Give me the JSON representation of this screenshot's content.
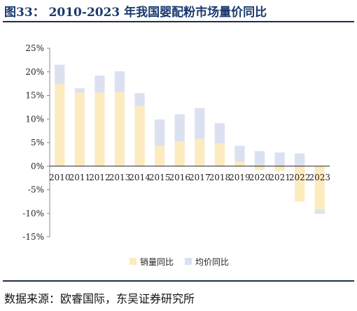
{
  "title": "图33： 2010-2023 年我国婴配粉市场量价同比",
  "source": "数据来源：欧睿国际，东吴证券研究所",
  "colors": {
    "volume": "#FCEBBE",
    "price": "#DCE1F1",
    "title": "#1a3a6e",
    "rule": "#1f2d4a"
  },
  "chart_data": {
    "type": "bar",
    "stacked": true,
    "categories": [
      "2010",
      "2011",
      "2012",
      "2013",
      "2014",
      "2015",
      "2016",
      "2017",
      "2018",
      "2019",
      "2020",
      "2021",
      "2022",
      "2023"
    ],
    "series": [
      {
        "name": "销量同比",
        "values": [
          17.4,
          15.6,
          15.6,
          15.7,
          12.7,
          4.3,
          5.2,
          5.8,
          4.8,
          1.0,
          -0.8,
          -1.0,
          -7.5,
          -9.3
        ]
      },
      {
        "name": "均价同比",
        "values": [
          4.1,
          0.9,
          3.6,
          4.4,
          2.8,
          5.6,
          5.8,
          6.5,
          4.3,
          3.3,
          3.2,
          2.9,
          2.7,
          -0.8
        ]
      }
    ],
    "ylim": [
      -15,
      25
    ],
    "yticks": [
      "-15%",
      "-10%",
      "-5%",
      "0%",
      "5%",
      "10%",
      "15%",
      "20%",
      "25%"
    ],
    "ytick_values": [
      -15,
      -10,
      -5,
      0,
      5,
      10,
      15,
      20,
      25
    ],
    "legend_position": "bottom",
    "grid": false
  }
}
